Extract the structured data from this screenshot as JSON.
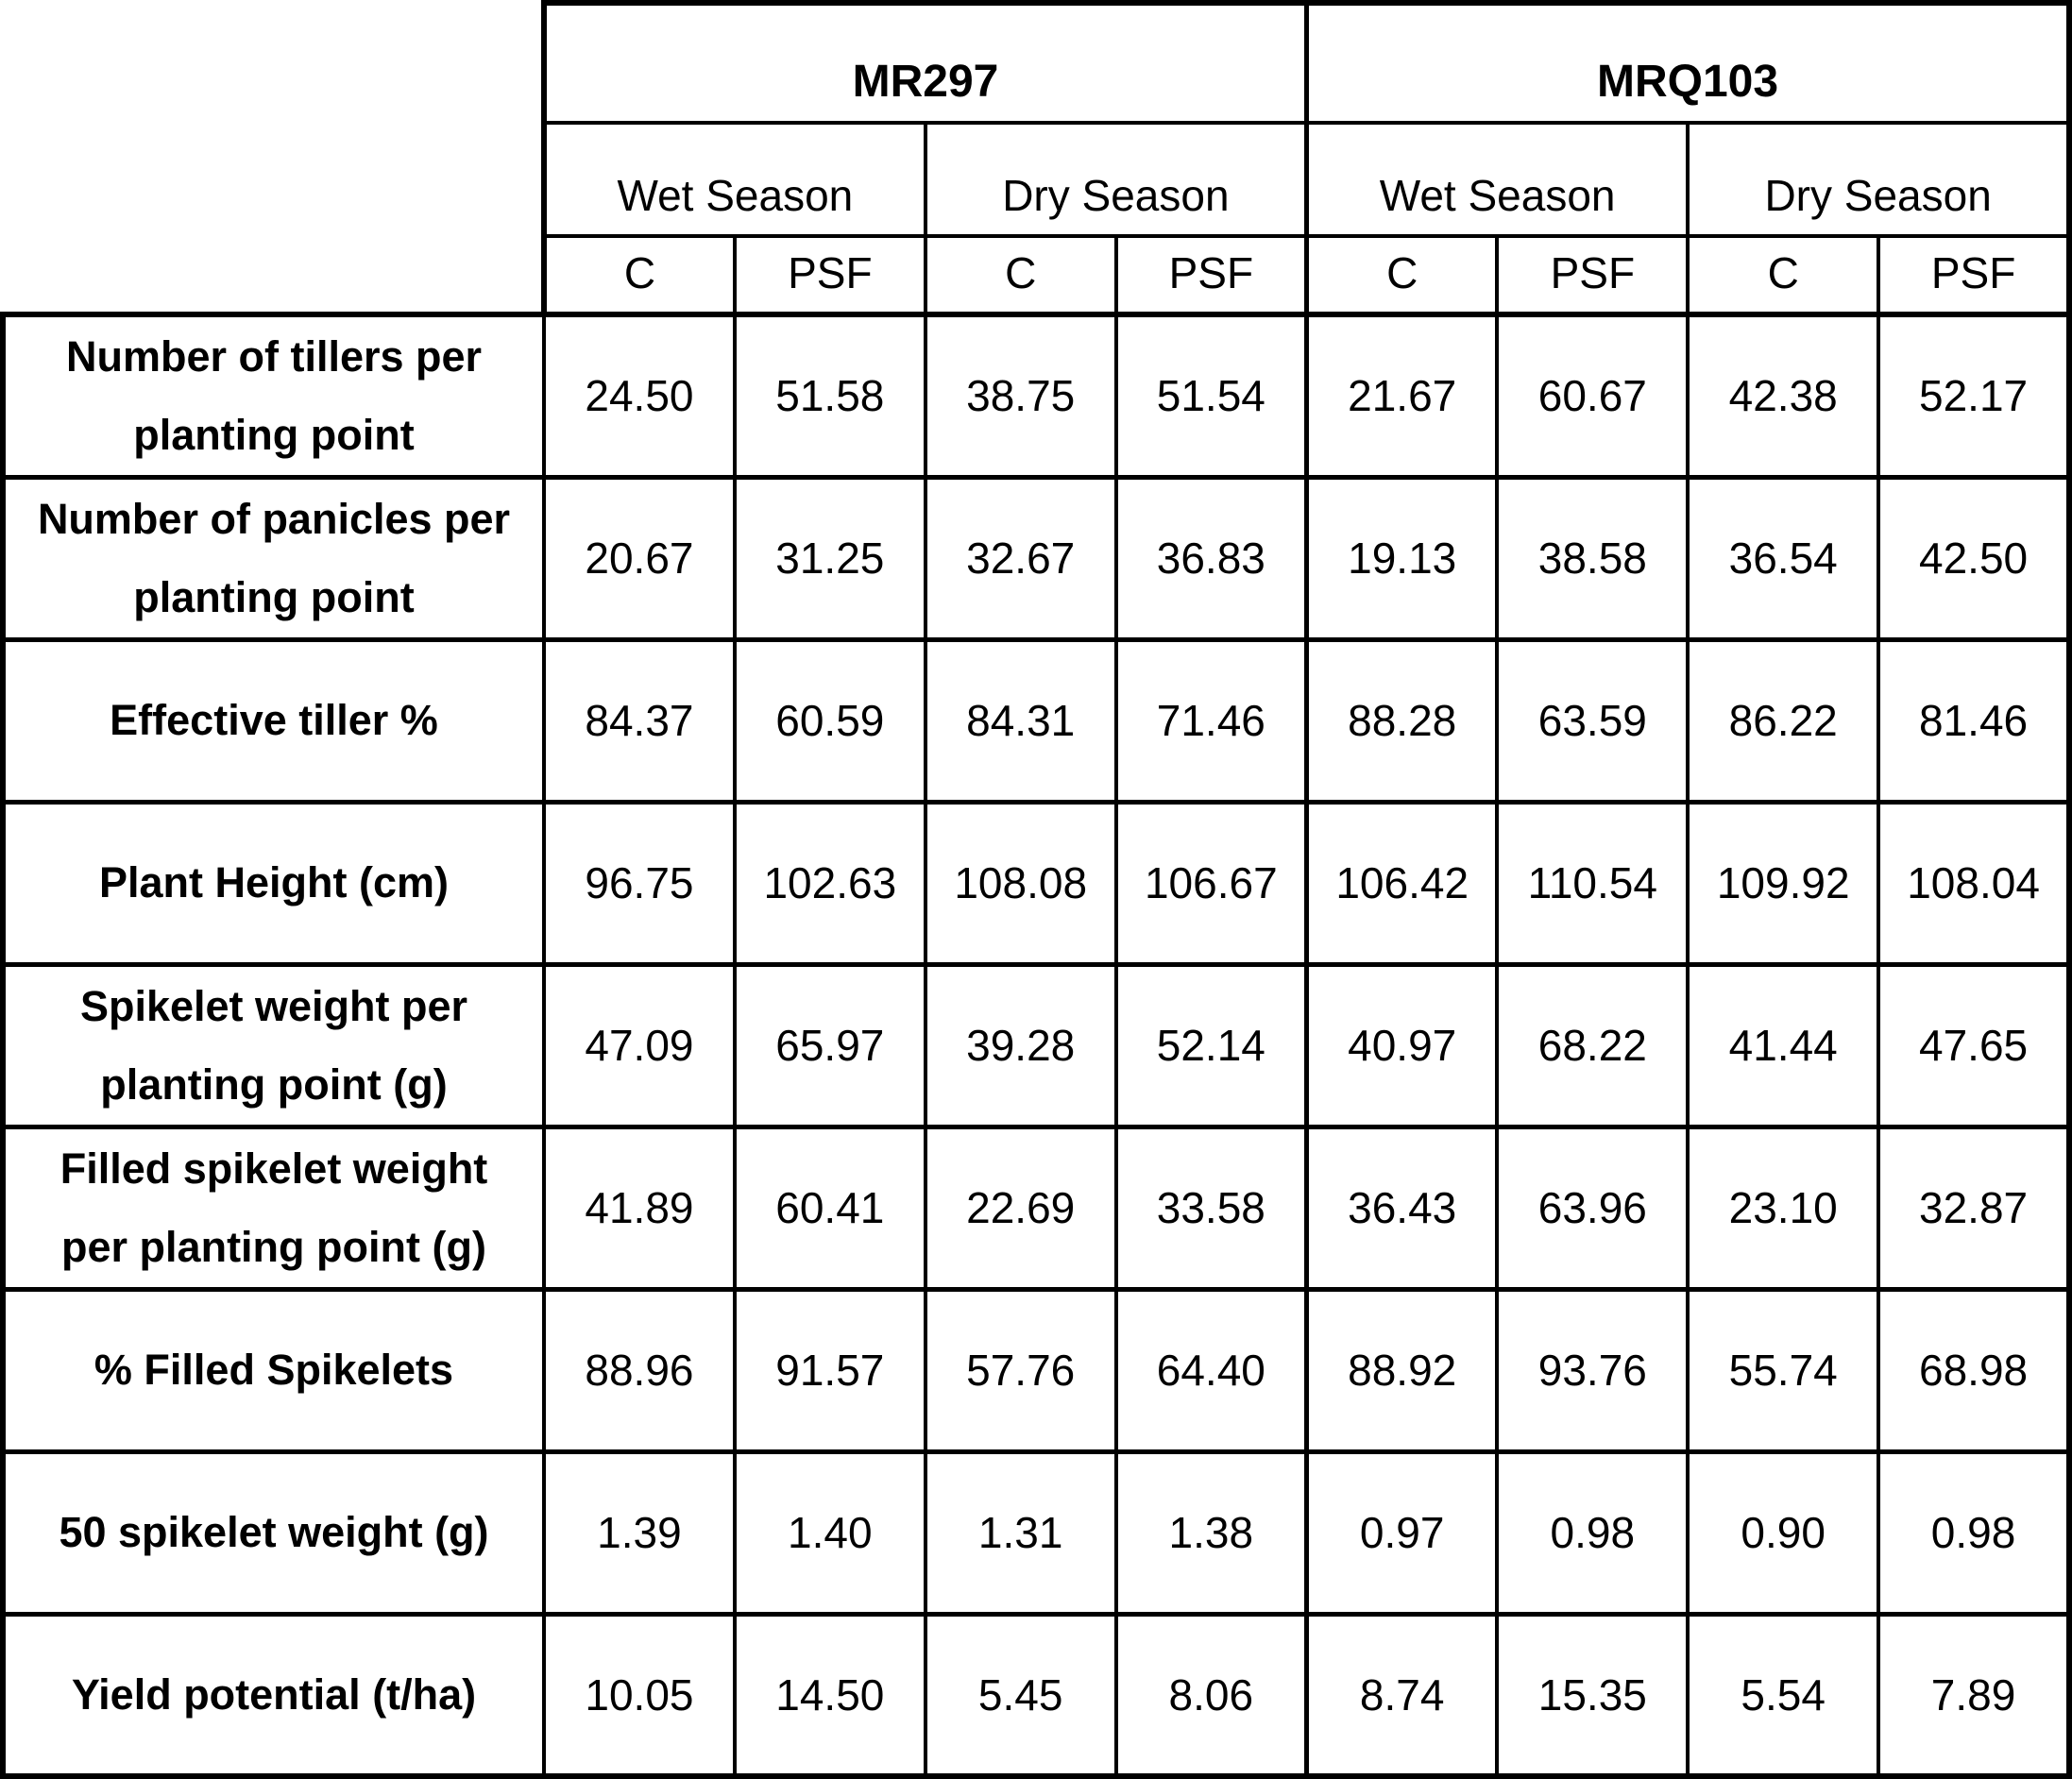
{
  "table": {
    "groups": [
      {
        "name": "MR297"
      },
      {
        "name": "MRQ103"
      }
    ],
    "seasons": [
      "Wet Season",
      "Dry Season",
      "Wet Season",
      "Dry Season"
    ],
    "treatments": [
      "C",
      "PSF",
      "C",
      "PSF",
      "C",
      "PSF",
      "C",
      "PSF"
    ],
    "rows": [
      {
        "label": "Number of tillers per\nplanting point",
        "values": [
          "24.50",
          "51.58",
          "38.75",
          "51.54",
          "21.67",
          "60.67",
          "42.38",
          "52.17"
        ]
      },
      {
        "label": "Number of panicles per\nplanting point",
        "values": [
          "20.67",
          "31.25",
          "32.67",
          "36.83",
          "19.13",
          "38.58",
          "36.54",
          "42.50"
        ]
      },
      {
        "label": "Effective tiller %",
        "values": [
          "84.37",
          "60.59",
          "84.31",
          "71.46",
          "88.28",
          "63.59",
          "86.22",
          "81.46"
        ]
      },
      {
        "label": "Plant Height (cm)",
        "values": [
          "96.75",
          "102.63",
          "108.08",
          "106.67",
          "106.42",
          "110.54",
          "109.92",
          "108.04"
        ]
      },
      {
        "label": "Spikelet weight per\nplanting point (g)",
        "values": [
          "47.09",
          "65.97",
          "39.28",
          "52.14",
          "40.97",
          "68.22",
          "41.44",
          "47.65"
        ]
      },
      {
        "label": "Filled spikelet weight\nper planting point (g)",
        "values": [
          "41.89",
          "60.41",
          "22.69",
          "33.58",
          "36.43",
          "63.96",
          "23.10",
          "32.87"
        ]
      },
      {
        "label": "% Filled Spikelets",
        "values": [
          "88.96",
          "91.57",
          "57.76",
          "64.40",
          "88.92",
          "93.76",
          "55.74",
          "68.98"
        ]
      },
      {
        "label": "50 spikelet weight (g)",
        "values": [
          "1.39",
          "1.40",
          "1.31",
          "1.38",
          "0.97",
          "0.98",
          "0.90",
          "0.98"
        ]
      },
      {
        "label": "Yield potential (t/ha)",
        "values": [
          "10.05",
          "14.50",
          "5.45",
          "8.06",
          "8.74",
          "15.35",
          "5.54",
          "7.89"
        ]
      }
    ]
  },
  "colors": {
    "background": "#ffffff",
    "text": "#000000",
    "border": "#000000"
  }
}
